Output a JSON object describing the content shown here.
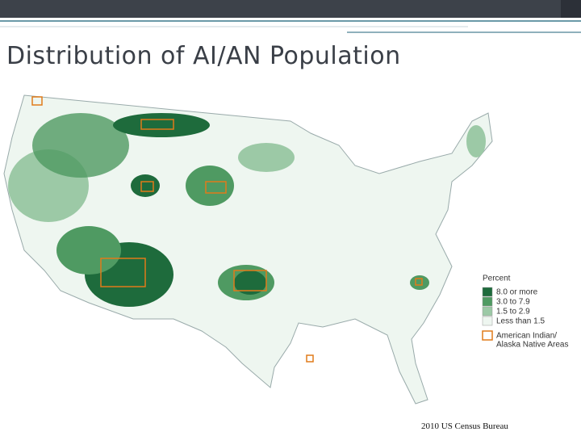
{
  "title": "Distribution of AI/AN Population",
  "legend": {
    "title": "Percent",
    "items": [
      {
        "label": "8.0 or more",
        "color": "#1e6b3c"
      },
      {
        "label": "3.0 to 7.9",
        "color": "#4f9a62"
      },
      {
        "label": "1.5 to 2.9",
        "color": "#9cc9a6"
      },
      {
        "label": "Less than 1.5",
        "color": "#eef6f0"
      }
    ],
    "areas": {
      "lines": [
        "American Indian/",
        "Alaska Native Areas"
      ],
      "color": "#e07b1a"
    }
  },
  "source": "2010 US Census Bureau"
}
